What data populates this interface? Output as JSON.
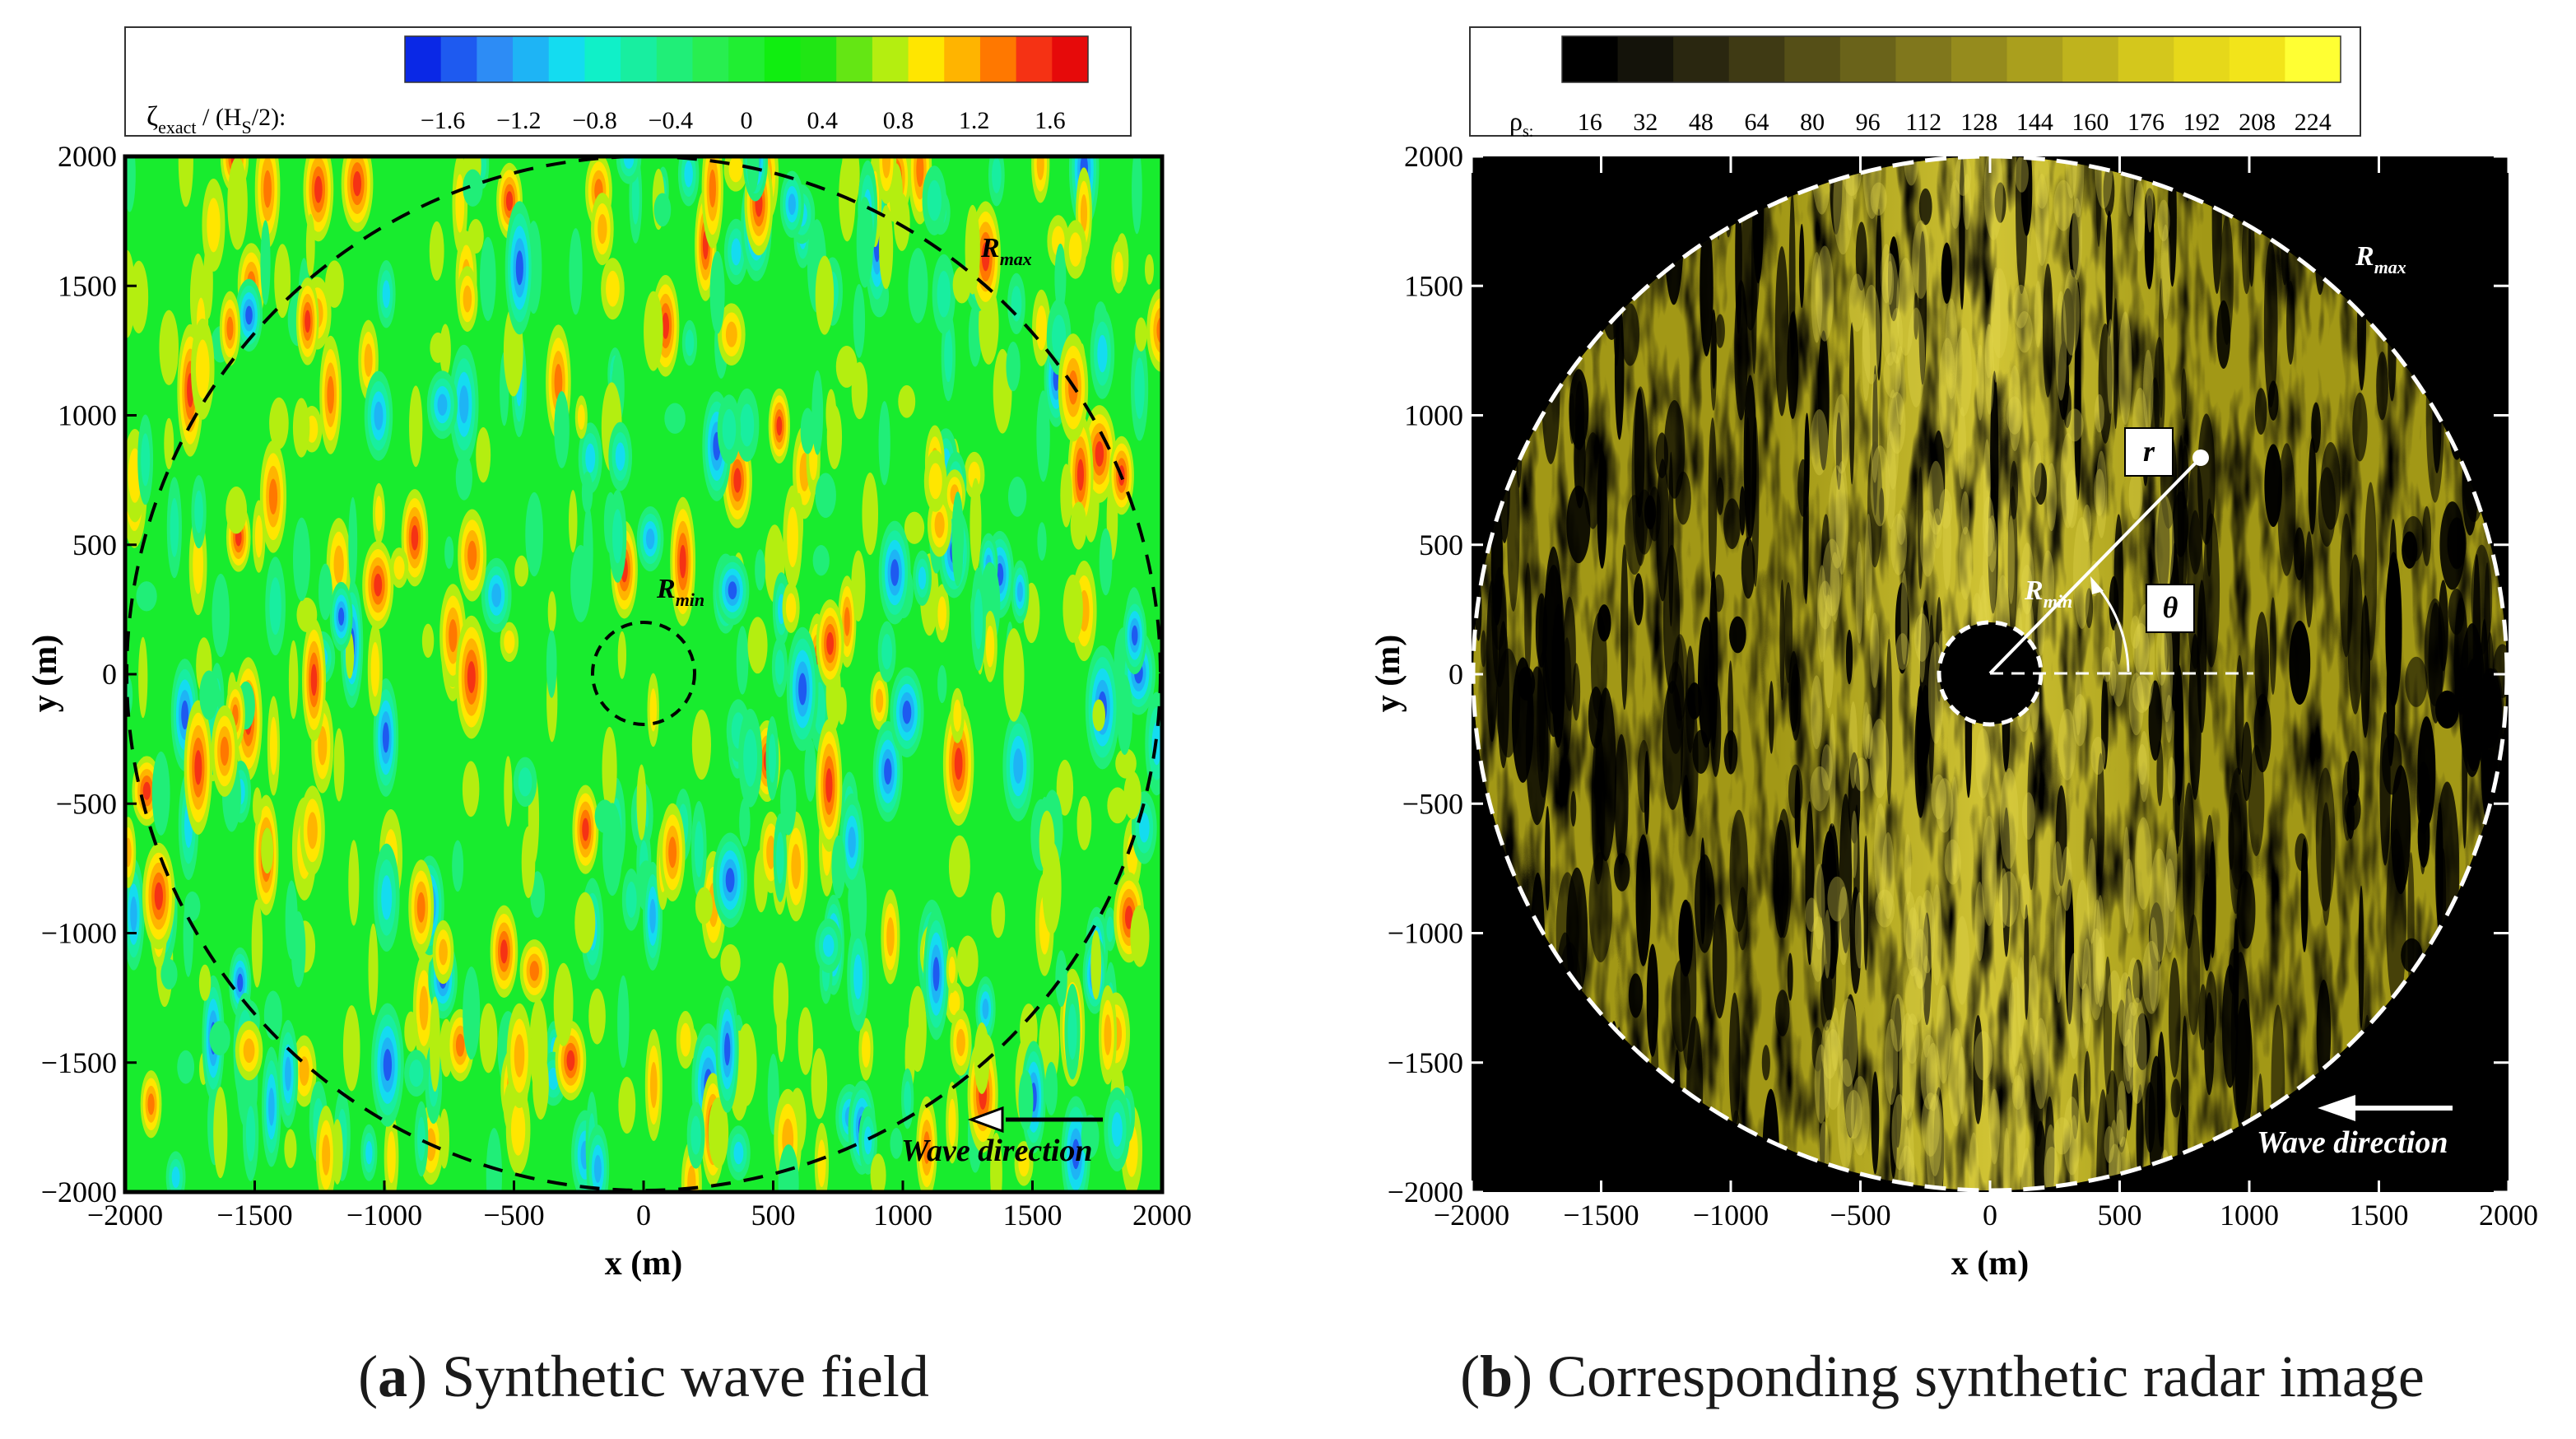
{
  "chart_data": [
    {
      "type": "heatmap",
      "panel_label": "a",
      "caption": "Synthetic wave field",
      "xlabel": "x (m)",
      "ylabel": "y (m)",
      "xlim": [
        -2000,
        2000
      ],
      "ylim": [
        -2000,
        2000
      ],
      "xticks": [
        -2000,
        -1500,
        -1000,
        -500,
        0,
        500,
        1000,
        1500,
        2000
      ],
      "yticks": [
        -2000,
        -1500,
        -1000,
        -500,
        0,
        500,
        1000,
        1500,
        2000
      ],
      "colorbar": {
        "label_main": "ζ",
        "label_sub1": "exact",
        "label_mid": " / (H",
        "label_sub2": "S",
        "label_end": "/2):",
        "ticks": [
          "−1.6",
          "−1.2",
          "−0.8",
          "−0.4",
          "0",
          "0.4",
          "0.8",
          "1.2",
          "1.6"
        ],
        "tick_values": [
          -1.6,
          -1.2,
          -0.8,
          -0.4,
          0,
          0.4,
          0.8,
          1.2,
          1.6
        ],
        "range": [
          -1.8,
          1.8
        ],
        "colors": [
          "#0a28e6",
          "#1e5af0",
          "#2d8cf5",
          "#1eb4f5",
          "#14dcf0",
          "#10f0c8",
          "#18eea0",
          "#20ee78",
          "#28ee50",
          "#20ee32",
          "#10ee10",
          "#20e614",
          "#64e614",
          "#b4ee10",
          "#ffe600",
          "#ffb400",
          "#ff7800",
          "#f53214",
          "#e60a0a"
        ]
      },
      "circles": [
        {
          "label": "R",
          "sub": "max",
          "radius_m": 2000,
          "center": [
            0,
            0
          ]
        },
        {
          "label": "R",
          "sub": "min",
          "radius_m": 200,
          "center": [
            0,
            0
          ]
        }
      ],
      "annotations": {
        "wave_direction": "Wave direction"
      }
    },
    {
      "type": "heatmap",
      "panel_label": "b",
      "caption": "Corresponding synthetic radar image",
      "xlabel": "x (m)",
      "ylabel": "y (m)",
      "xlim": [
        -2000,
        2000
      ],
      "ylim": [
        -2000,
        2000
      ],
      "xticks": [
        -2000,
        -1500,
        -1000,
        -500,
        0,
        500,
        1000,
        1500,
        2000
      ],
      "yticks": [
        -2000,
        -1500,
        -1000,
        -500,
        0,
        500,
        1000,
        1500,
        2000
      ],
      "colorbar": {
        "label_main": "ρ",
        "label_sub1": "s:",
        "ticks": [
          "16",
          "32",
          "48",
          "64",
          "80",
          "96",
          "112",
          "128",
          "144",
          "160",
          "176",
          "192",
          "208",
          "224"
        ],
        "tick_values": [
          16,
          32,
          48,
          64,
          80,
          96,
          112,
          128,
          144,
          160,
          176,
          192,
          208,
          224
        ],
        "range": [
          0,
          240
        ],
        "colors": [
          "#000000",
          "#14130a",
          "#2a2710",
          "#3f3a14",
          "#554f17",
          "#6a631a",
          "#80771c",
          "#958b1d",
          "#aa9f1d",
          "#bfb31d",
          "#d4c71c",
          "#e6d81a",
          "#f2e41a",
          "#ffff33"
        ]
      },
      "circles": [
        {
          "label": "R",
          "sub": "max",
          "radius_m": 2000,
          "center": [
            0,
            0
          ]
        },
        {
          "label": "R",
          "sub": "min",
          "radius_m": 200,
          "center": [
            0,
            0
          ]
        }
      ],
      "polar": {
        "r_label": "r",
        "theta_label": "θ",
        "point_m": [
          820,
          830
        ]
      },
      "annotations": {
        "wave_direction": "Wave direction"
      }
    }
  ],
  "captions": {
    "a": {
      "letter": "a",
      "text": "Synthetic wave field"
    },
    "b": {
      "letter": "b",
      "text": "Corresponding synthetic radar image"
    }
  }
}
